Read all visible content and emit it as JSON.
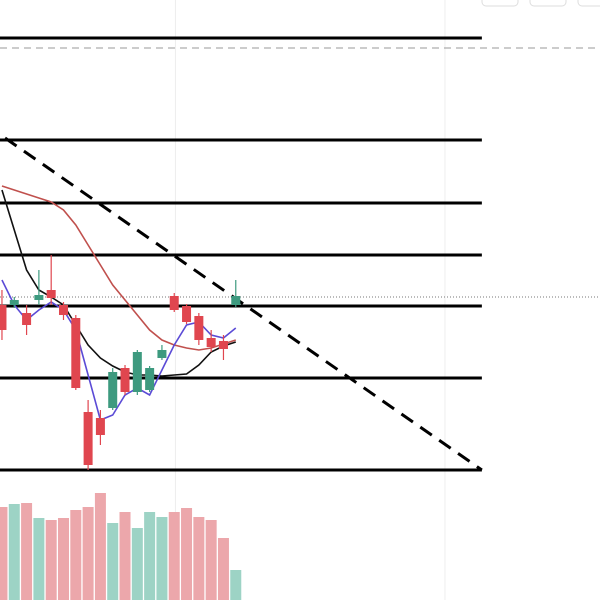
{
  "chart_data": {
    "type": "candlestick",
    "xlim": [
      -0.16,
      48.6
    ],
    "ylim": [
      0,
      600
    ],
    "volume_ylim": [
      0,
      110
    ],
    "up_color": "#3d9a7f",
    "down_color": "#e0464f",
    "up_volume_color": "#9dd3c5",
    "down_volume_color": "#eca7ab",
    "open": [
      295,
      295,
      287,
      300,
      310,
      295,
      282,
      188,
      182,
      192,
      232,
      208,
      210,
      242,
      304,
      294,
      284,
      262,
      259,
      295
    ],
    "high": [
      310,
      303,
      295,
      330,
      345,
      298,
      285,
      200,
      190,
      232,
      235,
      250,
      234,
      255,
      307,
      296,
      287,
      270,
      265,
      320
    ],
    "low": [
      260,
      292,
      265,
      295,
      295,
      280,
      210,
      130,
      155,
      190,
      205,
      205,
      208,
      240,
      288,
      276,
      255,
      248,
      240,
      293
    ],
    "close": [
      270,
      300,
      275,
      305,
      302,
      285,
      212,
      135,
      165,
      228,
      208,
      248,
      232,
      250,
      290,
      278,
      260,
      253,
      251,
      304
    ],
    "volume": [
      93,
      96,
      97,
      82,
      80,
      82,
      90,
      93,
      107,
      77,
      88,
      72,
      88,
      83,
      88,
      92,
      83,
      80,
      62,
      30
    ],
    "series": [
      {
        "color": "#111111",
        "values": [
          410,
          370,
          330,
          310,
          303,
          295,
          275,
          255,
          242,
          234,
          228,
          225,
          225,
          224,
          225,
          226,
          235,
          248,
          254,
          258
        ]
      },
      {
        "color": "#c0504d",
        "values": [
          414,
          410,
          406,
          402,
          398,
          390,
          375,
          355,
          335,
          315,
          300,
          285,
          270,
          260,
          255,
          252,
          250,
          252,
          256,
          260
        ]
      },
      {
        "color": "#5b4bd6",
        "values": [
          320,
          295,
          280,
          290,
          298,
          290,
          270,
          225,
          180,
          185,
          205,
          212,
          205,
          230,
          255,
          275,
          278,
          265,
          262,
          272
        ]
      }
    ],
    "levels": [
      562,
      460,
      397,
      345,
      294,
      222,
      130
    ],
    "level_end": 39,
    "dashed_level": 552,
    "dotted_level": 303,
    "trendline": {
      "x": [
        0.25,
        39
      ],
      "y": [
        462,
        130
      ]
    },
    "xgrid": [
      14.1,
      36
    ]
  }
}
